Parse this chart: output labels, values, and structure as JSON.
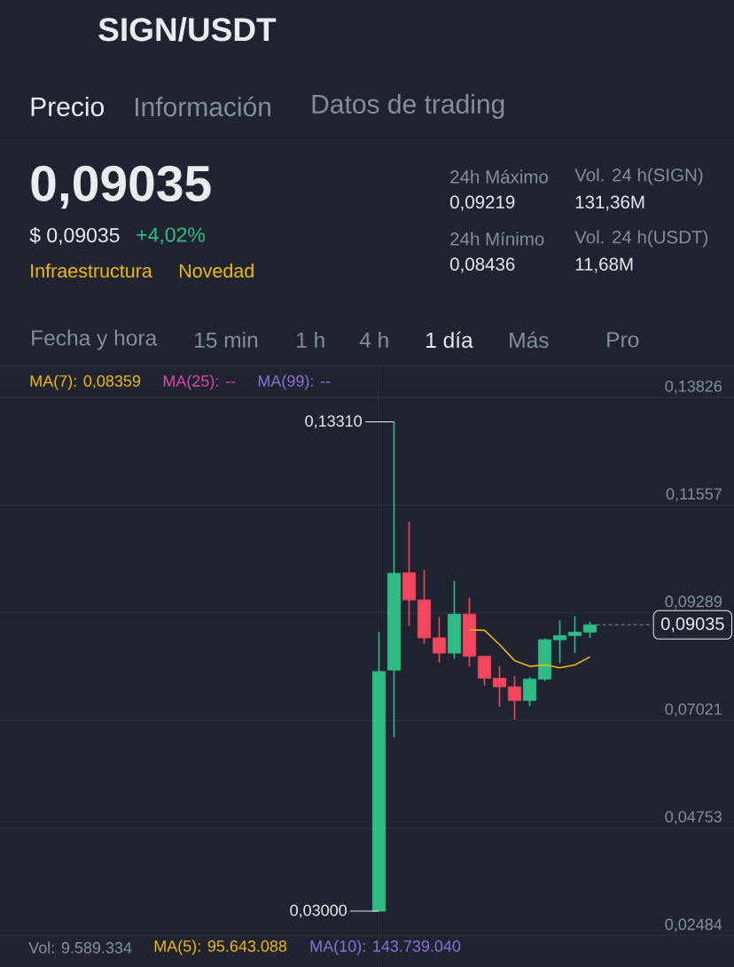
{
  "chart_data": {
    "type": "candlestick",
    "title": "SIGN/USDT",
    "categories": [
      null,
      null,
      null,
      null,
      null,
      null,
      null,
      null,
      null,
      null,
      null,
      null,
      null,
      null,
      null
    ],
    "ohlc": [
      [
        0.03,
        0.0888,
        0.03,
        0.0805
      ],
      [
        0.0808,
        0.1331,
        0.0666,
        0.1012
      ],
      [
        0.1013,
        0.1121,
        0.0901,
        0.0956
      ],
      [
        0.0956,
        0.1019,
        0.0864,
        0.0876
      ],
      [
        0.0876,
        0.092,
        0.0824,
        0.0844
      ],
      [
        0.0844,
        0.0996,
        0.0832,
        0.0926
      ],
      [
        0.0926,
        0.096,
        0.0815,
        0.0837
      ],
      [
        0.0837,
        0.0837,
        0.0776,
        0.0791
      ],
      [
        0.0791,
        0.0816,
        0.0731,
        0.0773
      ],
      [
        0.0773,
        0.0795,
        0.0704,
        0.0744
      ],
      [
        0.0744,
        0.0794,
        0.0732,
        0.0789
      ],
      [
        0.0789,
        0.0875,
        0.0785,
        0.0872
      ],
      [
        0.0872,
        0.0913,
        0.0823,
        0.0881
      ],
      [
        0.0881,
        0.0921,
        0.0844,
        0.0888
      ],
      [
        0.0888,
        0.091,
        0.0876,
        0.09035
      ]
    ],
    "colors": [
      "#2ebd85",
      "#2ebd85",
      "#f6465d",
      "#f6465d",
      "#f6465d",
      "#2ebd85",
      "#f6465d",
      "#f6465d",
      "#f6465d",
      "#f6465d",
      "#2ebd85",
      "#2ebd85",
      "#2ebd85",
      "#2ebd85",
      "#2ebd85"
    ],
    "series": [
      {
        "name": "MA(7): 0,08359",
        "type": "line",
        "color": "#f0b90b",
        "values": [
          null,
          null,
          null,
          null,
          null,
          null,
          0.0893,
          0.0892,
          0.0862,
          0.0828,
          0.0816,
          0.0819,
          0.0813,
          0.0819,
          0.0836
        ]
      },
      {
        "name": "MA(25): --",
        "type": "line",
        "color": "#d84aa7",
        "values": [
          null,
          null,
          null,
          null,
          null,
          null,
          null,
          null,
          null,
          null,
          null,
          null,
          null,
          null,
          null
        ]
      },
      {
        "name": "MA(99): --",
        "type": "line",
        "color": "#8e71d4",
        "values": [
          null,
          null,
          null,
          null,
          null,
          null,
          null,
          null,
          null,
          null,
          null,
          null,
          null,
          null,
          null
        ]
      }
    ],
    "ylim": [
      0.02484,
      0.1449
    ],
    "yticks": [
      {
        "value": 0.13826,
        "label": "0,13826"
      },
      {
        "value": 0.11557,
        "label": "0,11557"
      },
      {
        "value": 0.09289,
        "label": "0,09289"
      },
      {
        "value": 0.07021,
        "label": "0,07021"
      },
      {
        "value": 0.04753,
        "label": "0,04753"
      },
      {
        "value": 0.02484,
        "label": "0,02484"
      }
    ],
    "grid": "y",
    "legend": "top left",
    "tick_labels": "y",
    "ref_lines": [
      {
        "axis": "y",
        "value": 0.09035,
        "label": "0,09035",
        "color": "#848e9c",
        "line_style": "dashed"
      }
    ],
    "annotations": [
      "Precio",
      "Información",
      "Datos de trading",
      "0,09035",
      "$ 0,09035",
      "+4,02%",
      "Infraestructura",
      "Novedad",
      "24h Máximo",
      "0,09219",
      "Vol. 24 h(SIGN)",
      "131,36M",
      "24h Mínimo",
      "0,08436",
      "Vol. 24 h(USDT)",
      "11,68M",
      "Fecha y hora",
      "15 min",
      "1 h",
      "4 h",
      "1 día",
      "Más",
      "Pro",
      "0,13310",
      "0,03000",
      "Vol: 9.589.334",
      "MA(5): 95.643.088",
      "MA(10): 143.739.040"
    ]
  }
}
